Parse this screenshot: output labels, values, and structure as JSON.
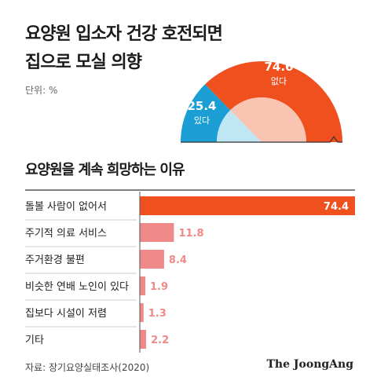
{
  "title": {
    "line1": "요양원 입소자 건강 호전되면",
    "line2": "집으로 모실 의향"
  },
  "unit": "단위: %",
  "subtitle": "요양원을 계속 희망하는 이유",
  "source": "자료: 장기요양실태조사(2020)",
  "brand": "The JoongAng",
  "colors": {
    "orange": "#f0501e",
    "orange_light": "#f9c4b1",
    "blue": "#1a9ed4",
    "blue_light": "#bfe6f3",
    "pink": "#f08a8a"
  },
  "chart_data": [
    {
      "type": "pie",
      "style": "half-donut",
      "slices": [
        {
          "label": "있다",
          "value": 25.4
        },
        {
          "label": "없다",
          "value": 74.6
        }
      ]
    },
    {
      "type": "bar",
      "orientation": "horizontal",
      "title": "요양원을 계속 희망하는 이유",
      "categories": [
        "돌볼 사람이 없어서",
        "주기적 의료 서비스",
        "주거환경 불편",
        "비슷한 연배 노인이 있다",
        "집보다 시설이 저렴",
        "기타"
      ],
      "values": [
        74.4,
        11.8,
        8.4,
        1.9,
        1.3,
        2.2
      ],
      "xlim": [
        0,
        74.4
      ]
    }
  ]
}
